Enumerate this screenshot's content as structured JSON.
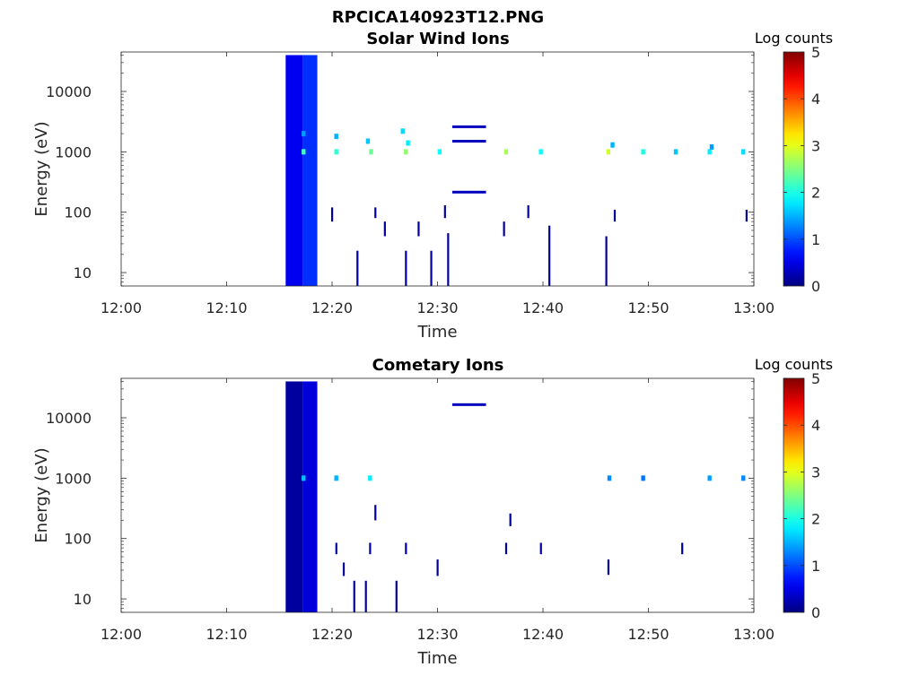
{
  "figure_title": "RPCICA140923T12.PNG",
  "colors": {
    "low": "#00007f",
    "mid": "#00ffff",
    "high": "#7f0000"
  },
  "chart_data": [
    {
      "type": "heatmap",
      "title": "Solar Wind Ions",
      "xlabel": "Time",
      "ylabel": "Energy (eV)",
      "x_ticks": [
        "12:00",
        "12:10",
        "12:20",
        "12:30",
        "12:40",
        "12:50",
        "13:00"
      ],
      "x_range_minutes": [
        0,
        60
      ],
      "y_scale": "log",
      "y_ticks": [
        "10",
        "100",
        "1000",
        "10000"
      ],
      "y_range": [
        6,
        45000
      ],
      "colorbar": {
        "title": "Log counts",
        "ticks": [
          "0",
          "1",
          "2",
          "3",
          "4",
          "5"
        ],
        "range": [
          0,
          5
        ],
        "colormap": "jet"
      },
      "blocks": [
        {
          "t": [
            15.6,
            17.2
          ],
          "e": [
            6,
            40000
          ],
          "v": 0.55
        },
        {
          "t": [
            17.2,
            18.6
          ],
          "e": [
            6,
            40000
          ],
          "v": 0.85
        }
      ],
      "cells": [
        {
          "t": 17.3,
          "e": 1000,
          "v": 2.2
        },
        {
          "t": 17.3,
          "e": 2000,
          "v": 1.4
        },
        {
          "t": 20.4,
          "e": 1000,
          "v": 2.1
        },
        {
          "t": 20.4,
          "e": 1800,
          "v": 1.5
        },
        {
          "t": 23.7,
          "e": 1000,
          "v": 2.4
        },
        {
          "t": 23.4,
          "e": 1500,
          "v": 1.6
        },
        {
          "t": 27.0,
          "e": 1000,
          "v": 2.6
        },
        {
          "t": 27.2,
          "e": 1400,
          "v": 1.8
        },
        {
          "t": 26.7,
          "e": 2200,
          "v": 1.7
        },
        {
          "t": 30.2,
          "e": 1000,
          "v": 1.9
        },
        {
          "t": 36.5,
          "e": 1000,
          "v": 2.7
        },
        {
          "t": 39.8,
          "e": 1000,
          "v": 1.9
        },
        {
          "t": 46.2,
          "e": 1000,
          "v": 2.9
        },
        {
          "t": 46.6,
          "e": 1300,
          "v": 1.5
        },
        {
          "t": 49.5,
          "e": 1000,
          "v": 2.0
        },
        {
          "t": 52.6,
          "e": 1000,
          "v": 1.6
        },
        {
          "t": 55.8,
          "e": 1000,
          "v": 1.8
        },
        {
          "t": 59.0,
          "e": 1000,
          "v": 1.7
        },
        {
          "t": 56.0,
          "e": 1200,
          "v": 1.4
        }
      ],
      "hlines": [
        {
          "t": [
            31.4,
            34.6
          ],
          "e": 2600,
          "v": 0.3
        },
        {
          "t": [
            31.4,
            34.6
          ],
          "e": 1500,
          "v": 0.3
        },
        {
          "t": [
            31.4,
            34.6
          ],
          "e": 215,
          "v": 0.3
        }
      ],
      "vlines": [
        {
          "t": 22.4,
          "e": [
            6,
            23
          ]
        },
        {
          "t": 27.0,
          "e": [
            6,
            23
          ]
        },
        {
          "t": 29.4,
          "e": [
            6,
            23
          ]
        },
        {
          "t": 31.0,
          "e": [
            6,
            45
          ]
        },
        {
          "t": 40.6,
          "e": [
            6,
            60
          ]
        },
        {
          "t": 46.0,
          "e": [
            6,
            40
          ]
        },
        {
          "t": 25.0,
          "e": [
            40,
            70
          ]
        },
        {
          "t": 28.2,
          "e": [
            40,
            70
          ]
        },
        {
          "t": 36.3,
          "e": [
            40,
            70
          ]
        },
        {
          "t": 20.0,
          "e": [
            70,
            120
          ]
        },
        {
          "t": 24.1,
          "e": [
            80,
            120
          ]
        },
        {
          "t": 30.7,
          "e": [
            80,
            130
          ]
        },
        {
          "t": 38.6,
          "e": [
            80,
            130
          ]
        },
        {
          "t": 46.8,
          "e": [
            70,
            110
          ]
        },
        {
          "t": 59.3,
          "e": [
            70,
            110
          ]
        }
      ]
    },
    {
      "type": "heatmap",
      "title": "Cometary Ions",
      "xlabel": "Time",
      "ylabel": "Energy (eV)",
      "x_ticks": [
        "12:00",
        "12:10",
        "12:20",
        "12:30",
        "12:40",
        "12:50",
        "13:00"
      ],
      "x_range_minutes": [
        0,
        60
      ],
      "y_scale": "log",
      "y_ticks": [
        "10",
        "100",
        "1000",
        "10000"
      ],
      "y_range": [
        6,
        45000
      ],
      "colorbar": {
        "title": "Log counts",
        "ticks": [
          "0",
          "1",
          "2",
          "3",
          "4",
          "5"
        ],
        "range": [
          0,
          5
        ],
        "colormap": "jet"
      },
      "blocks": [
        {
          "t": [
            15.6,
            17.2
          ],
          "e": [
            6,
            40000
          ],
          "v": 0.15
        },
        {
          "t": [
            17.2,
            18.6
          ],
          "e": [
            6,
            40000
          ],
          "v": 0.45
        }
      ],
      "cells": [
        {
          "t": 17.3,
          "e": 1000,
          "v": 1.6
        },
        {
          "t": 20.4,
          "e": 1000,
          "v": 1.5
        },
        {
          "t": 23.6,
          "e": 1000,
          "v": 1.8
        },
        {
          "t": 46.3,
          "e": 1000,
          "v": 1.3
        },
        {
          "t": 49.5,
          "e": 1000,
          "v": 1.2
        },
        {
          "t": 55.8,
          "e": 1000,
          "v": 1.4
        },
        {
          "t": 59.0,
          "e": 1000,
          "v": 1.3
        }
      ],
      "hlines": [
        {
          "t": [
            31.4,
            34.6
          ],
          "e": 16500,
          "v": 0.3
        }
      ],
      "vlines": [
        {
          "t": 22.1,
          "e": [
            6,
            20
          ]
        },
        {
          "t": 23.2,
          "e": [
            6,
            20
          ]
        },
        {
          "t": 26.1,
          "e": [
            6,
            20
          ]
        },
        {
          "t": 21.1,
          "e": [
            24,
            40
          ]
        },
        {
          "t": 30.0,
          "e": [
            24,
            45
          ]
        },
        {
          "t": 46.2,
          "e": [
            25,
            45
          ]
        },
        {
          "t": 20.4,
          "e": [
            55,
            85
          ]
        },
        {
          "t": 23.6,
          "e": [
            55,
            85
          ]
        },
        {
          "t": 27.0,
          "e": [
            55,
            85
          ]
        },
        {
          "t": 36.5,
          "e": [
            55,
            85
          ]
        },
        {
          "t": 39.8,
          "e": [
            55,
            85
          ]
        },
        {
          "t": 53.2,
          "e": [
            55,
            85
          ]
        },
        {
          "t": 24.1,
          "e": [
            200,
            360
          ]
        },
        {
          "t": 36.9,
          "e": [
            160,
            260
          ]
        }
      ]
    }
  ]
}
